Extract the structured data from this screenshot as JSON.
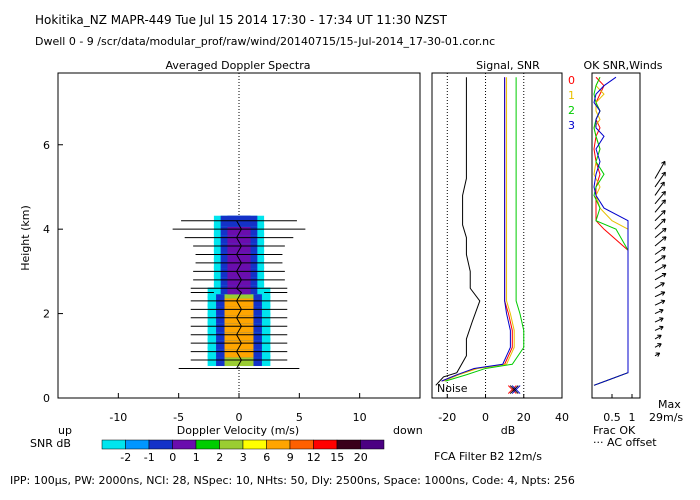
{
  "header": {
    "line1": "Hokitika_NZ   MAPR-449   Tue Jul 15 2014 17:30 - 17:34 UT 11:30 NZST",
    "line2": "Dwell   0 - 9   /scr/data/modular_prof/raw/wind/20140715/15-Jul-2014_17-30-01.cor.nc"
  },
  "footer": {
    "params": "IPP: 100µs,  PW: 2000ns,  NCI: 28,  NSpec: 10, NHts: 50,  Dly: 2500ns,  Space: 1000ns,  Code: 4,  Npts: 256",
    "fca": "FCA Filter B2 12m/s",
    "up": "up",
    "down": "down",
    "snr_db": "SNR dB",
    "noise": "Noise",
    "max_label": "Max",
    "max_value": "29m/s",
    "frac_ok": "Frac OK",
    "ac_offset": "··· AC offset"
  },
  "colors": {
    "series0": "#ff0000",
    "series1": "#e8c000",
    "series2": "#00cc00",
    "series3": "#0000cc",
    "wind_arrows": "#000000"
  },
  "colorbar": {
    "labels": [
      "-2",
      "-1",
      "0",
      "1",
      "2",
      "3",
      "6",
      "9",
      "12",
      "15",
      "20"
    ],
    "colors": [
      "#00e5ee",
      "#0096ff",
      "#1432c8",
      "#6a0dad",
      "#00cd00",
      "#9acd32",
      "#ffff00",
      "#ffa500",
      "#ff6000",
      "#ff0000",
      "#3a001a",
      "#4b0082"
    ]
  },
  "chart_data": [
    {
      "type": "heatmap",
      "title": "Averaged Doppler Spectra",
      "xlabel": "Doppler Velocity (m/s)",
      "ylabel": "Height (km)",
      "xlim": [
        -15,
        15
      ],
      "ylim": [
        0,
        7.7
      ],
      "xticks": [
        -10,
        -5,
        0,
        5,
        10
      ],
      "yticks": [
        0,
        2,
        4,
        6
      ],
      "profile": [
        {
          "h": 0.7,
          "snr": null,
          "spread": 5.0
        },
        {
          "h": 0.9,
          "snr": 2,
          "spread": 4.0
        },
        {
          "h": 1.1,
          "snr": 6,
          "spread": 4.0
        },
        {
          "h": 1.3,
          "snr": 6,
          "spread": 4.0
        },
        {
          "h": 1.5,
          "snr": 6,
          "spread": 4.0
        },
        {
          "h": 1.7,
          "snr": 6,
          "spread": 4.0
        },
        {
          "h": 1.9,
          "snr": 6,
          "spread": 4.0
        },
        {
          "h": 2.1,
          "snr": 6,
          "spread": 4.0
        },
        {
          "h": 2.3,
          "snr": 6,
          "spread": 4.0
        },
        {
          "h": 2.5,
          "snr": 2,
          "spread": 4.0
        },
        {
          "h": 2.6,
          "snr": 0,
          "spread": 4.0
        },
        {
          "h": 2.8,
          "snr": 0,
          "spread": 3.8
        },
        {
          "h": 3.0,
          "snr": 0,
          "spread": 3.8
        },
        {
          "h": 3.2,
          "snr": 0,
          "spread": 3.6
        },
        {
          "h": 3.4,
          "snr": 0,
          "spread": 3.6
        },
        {
          "h": 3.6,
          "snr": 0,
          "spread": 3.8
        },
        {
          "h": 3.8,
          "snr": 0,
          "spread": 4.5
        },
        {
          "h": 4.0,
          "snr": 0,
          "spread": 5.5
        },
        {
          "h": 4.2,
          "snr": -1,
          "spread": 4.8
        }
      ]
    },
    {
      "type": "line",
      "title": "Signal, SNR",
      "xlabel": "dB",
      "xlim": [
        -28,
        40
      ],
      "xticks": [
        -20,
        0,
        20,
        40
      ],
      "ylim": [
        0,
        7.7
      ],
      "series": [
        {
          "name": "0",
          "x": [
            -23,
            -15,
            -5,
            10,
            14,
            14,
            12,
            10,
            10,
            10,
            10,
            10,
            10,
            10,
            10,
            10,
            10,
            10,
            10,
            10,
            10,
            10,
            10,
            10,
            10,
            10,
            10,
            10,
            10
          ],
          "y": [
            0.4,
            0.55,
            0.7,
            0.8,
            1.2,
            1.6,
            2.0,
            2.3,
            2.6,
            3.0,
            3.4,
            3.8,
            4.2,
            4.6,
            5.0,
            5.4,
            5.8,
            6.2,
            6.6,
            7.0,
            7.3,
            7.5,
            7.6,
            7.2,
            6.8,
            6.4,
            6.0,
            5.6,
            5.2
          ]
        },
        {
          "name": "1",
          "x": [
            -22,
            -14,
            -4,
            11,
            15,
            15,
            13,
            11,
            11,
            11,
            11,
            11,
            11,
            11,
            11,
            11,
            11,
            11,
            11,
            11,
            11,
            11,
            11,
            11,
            11,
            11,
            11,
            11,
            11
          ],
          "y": [
            0.4,
            0.55,
            0.7,
            0.8,
            1.2,
            1.6,
            2.0,
            2.3,
            2.6,
            3.0,
            3.4,
            3.8,
            4.2,
            4.6,
            5.0,
            5.4,
            5.8,
            6.2,
            6.6,
            7.0,
            7.3,
            7.5,
            7.6,
            7.2,
            6.8,
            6.4,
            6.0,
            5.6,
            5.2
          ]
        },
        {
          "name": "2",
          "x": [
            -21,
            -10,
            0,
            14,
            20,
            20,
            18,
            16,
            16,
            16,
            16,
            16,
            16,
            16,
            16,
            16,
            16,
            16,
            16,
            16,
            16,
            16,
            16,
            16,
            16,
            16,
            16,
            16,
            16
          ],
          "y": [
            0.4,
            0.55,
            0.7,
            0.8,
            1.2,
            1.6,
            2.0,
            2.3,
            2.6,
            3.0,
            3.4,
            3.8,
            4.2,
            4.6,
            5.0,
            5.4,
            5.8,
            6.2,
            6.6,
            7.0,
            7.3,
            7.5,
            7.6,
            7.2,
            6.8,
            6.4,
            6.0,
            5.6,
            5.2
          ]
        },
        {
          "name": "3",
          "x": [
            -23,
            -15,
            -6,
            9,
            13,
            13,
            11,
            10,
            10,
            10,
            10,
            10,
            10,
            10,
            10,
            10,
            10,
            10,
            10,
            10,
            10,
            10,
            10,
            10,
            10,
            10,
            10,
            10,
            10
          ],
          "y": [
            0.4,
            0.55,
            0.7,
            0.8,
            1.2,
            1.6,
            2.0,
            2.3,
            2.6,
            3.0,
            3.4,
            3.8,
            4.2,
            4.6,
            5.0,
            5.4,
            5.8,
            6.2,
            6.6,
            7.0,
            7.3,
            7.5,
            7.6,
            7.2,
            6.8,
            6.4,
            6.0,
            5.6,
            5.2
          ]
        },
        {
          "name": "signal",
          "x": [
            -26,
            -22,
            -15,
            -10,
            -10,
            -7,
            -3,
            -8,
            -8,
            -10,
            -10,
            -12,
            -12,
            -12,
            -12,
            -10,
            -10,
            -10,
            -10,
            -10,
            -10,
            -10
          ],
          "y": [
            0.3,
            0.5,
            0.6,
            1.0,
            1.4,
            1.8,
            2.3,
            2.6,
            3.0,
            3.4,
            3.8,
            4.1,
            4.3,
            4.6,
            4.8,
            5.2,
            5.6,
            6.0,
            6.5,
            7.0,
            7.4,
            7.6
          ]
        }
      ]
    },
    {
      "type": "line",
      "title": "OK SNR,Winds",
      "xlabel": "Frac OK",
      "xlim": [
        0,
        1.2
      ],
      "xticks": [
        0.5,
        1
      ],
      "ylim": [
        0,
        7.7
      ],
      "series": [
        {
          "name": "0",
          "x": [
            0.05,
            0.9,
            0.9,
            0.9,
            0.9,
            0.9,
            0.9,
            0.3,
            0.1,
            0.1,
            0.1,
            0.1,
            0.2,
            0.1,
            0.05,
            0.1,
            0.2,
            0.1,
            0.2,
            0.1,
            0.2,
            0.3,
            0.1
          ],
          "y": [
            0.3,
            0.6,
            1.0,
            2.0,
            2.5,
            3.0,
            3.5,
            4.0,
            4.2,
            4.5,
            4.8,
            5.0,
            5.3,
            5.6,
            5.9,
            6.2,
            6.4,
            6.6,
            6.8,
            7.0,
            7.2,
            7.4,
            7.6
          ]
        },
        {
          "name": "1",
          "x": [
            0.05,
            0.9,
            0.9,
            0.9,
            0.9,
            0.9,
            0.9,
            0.9,
            0.5,
            0.2,
            0.1,
            0.2,
            0.05,
            0.1,
            0.2,
            0.1,
            0.05,
            0.2,
            0.1,
            0.1,
            0.3,
            0.1,
            0.2
          ],
          "y": [
            0.3,
            0.6,
            1.0,
            2.0,
            2.5,
            3.0,
            3.5,
            4.0,
            4.2,
            4.5,
            4.8,
            5.0,
            5.3,
            5.6,
            5.9,
            6.2,
            6.4,
            6.6,
            6.8,
            7.0,
            7.2,
            7.4,
            7.6
          ]
        },
        {
          "name": "2",
          "x": [
            0.05,
            0.9,
            0.9,
            0.9,
            0.9,
            0.9,
            0.9,
            0.6,
            0.1,
            0.2,
            0.05,
            0.1,
            0.3,
            0.1,
            0.2,
            0.1,
            0.05,
            0.1,
            0.2,
            0.1,
            0.05,
            0.1,
            0.2
          ],
          "y": [
            0.3,
            0.6,
            1.0,
            2.0,
            2.5,
            3.0,
            3.5,
            4.0,
            4.2,
            4.5,
            4.8,
            5.0,
            5.3,
            5.6,
            5.9,
            6.2,
            6.4,
            6.6,
            6.8,
            7.0,
            7.2,
            7.4,
            7.6
          ]
        },
        {
          "name": "3",
          "x": [
            0.05,
            0.9,
            0.9,
            0.9,
            0.9,
            0.9,
            0.9,
            0.9,
            0.9,
            0.3,
            0.1,
            0.05,
            0.1,
            0.2,
            0.1,
            0.3,
            0.1,
            0.1,
            0.2,
            0.05,
            0.1,
            0.3,
            0.6
          ],
          "y": [
            0.3,
            0.6,
            1.0,
            2.0,
            2.5,
            3.0,
            3.5,
            4.0,
            4.2,
            4.5,
            4.8,
            5.0,
            5.3,
            5.6,
            5.9,
            6.2,
            6.4,
            6.6,
            6.8,
            7.0,
            7.2,
            7.4,
            7.6
          ]
        }
      ],
      "winds": {
        "heights": [
          1.0,
          1.2,
          1.4,
          1.6,
          1.8,
          2.0,
          2.2,
          2.4,
          2.6,
          2.8,
          3.0,
          3.2,
          3.4,
          3.6,
          3.8,
          4.0,
          4.2,
          4.4,
          4.6,
          4.8,
          5.0,
          5.2
        ],
        "speed_ms": [
          6,
          8,
          8,
          10,
          10,
          10,
          12,
          12,
          12,
          14,
          14,
          14,
          14,
          16,
          16,
          16,
          16,
          18,
          18,
          18,
          20,
          22
        ],
        "dir_deg": [
          240,
          240,
          240,
          245,
          245,
          245,
          245,
          245,
          240,
          240,
          240,
          235,
          235,
          230,
          230,
          225,
          225,
          220,
          220,
          215,
          215,
          210
        ]
      }
    }
  ]
}
